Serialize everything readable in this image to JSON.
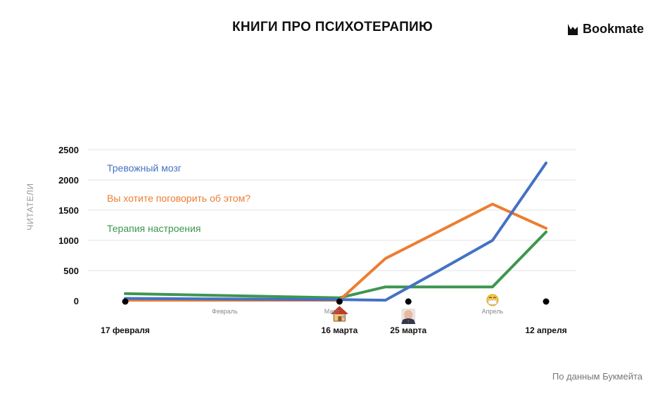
{
  "header": {
    "title": "КНИГИ ПРО ПСИХОТЕРАПИЮ",
    "brand": "Bookmate"
  },
  "footer": {
    "source": "По данным Букмейта"
  },
  "colors": {
    "blue": "#4472C4",
    "orange": "#ED7D31",
    "green": "#3E9651",
    "grid": "#e3e3e3",
    "muted": "#9a9a9a"
  },
  "chart_data": {
    "type": "line",
    "title": "КНИГИ ПРО ПСИХОТЕРАПИЮ",
    "ylabel": "ЧИТАТЕЛИ",
    "xlabel": "",
    "ylim": [
      0,
      2500
    ],
    "yticks": [
      0,
      500,
      1000,
      1500,
      2000,
      2500
    ],
    "grid": true,
    "legend_position": "top-left",
    "x": [
      "2020-02-17",
      "2020-03-16",
      "2020-03-22",
      "2020-03-29",
      "2020-04-05",
      "2020-04-12"
    ],
    "series": [
      {
        "name": "Тревожный мозг",
        "color": "#4472C4",
        "values": [
          40,
          20,
          10,
          500,
          1000,
          2280
        ]
      },
      {
        "name": "Вы хотите поговорить об этом?",
        "color": "#ED7D31",
        "values": [
          10,
          10,
          700,
          1150,
          1600,
          1200
        ]
      },
      {
        "name": "Терапия настроения",
        "color": "#3E9651",
        "values": [
          120,
          50,
          230,
          230,
          230,
          1140
        ]
      }
    ],
    "key_dates": [
      {
        "date": "2020-02-17",
        "label": "17 февраля",
        "icon": ""
      },
      {
        "date": "2020-03-16",
        "label": "16 марта",
        "icon": "house-icon"
      },
      {
        "date": "2020-03-25",
        "label": "25 марта",
        "icon": "face-portrait-icon"
      },
      {
        "date": "2020-04-12",
        "label": "12 апреля",
        "icon": ""
      }
    ],
    "month_labels": [
      {
        "date": "2020-03-01",
        "label": "Февраль"
      },
      {
        "date": "2020-03-15",
        "label": "Март"
      },
      {
        "date": "2020-04-05",
        "label": "Апрель",
        "icon": "mask-face-icon"
      }
    ]
  }
}
